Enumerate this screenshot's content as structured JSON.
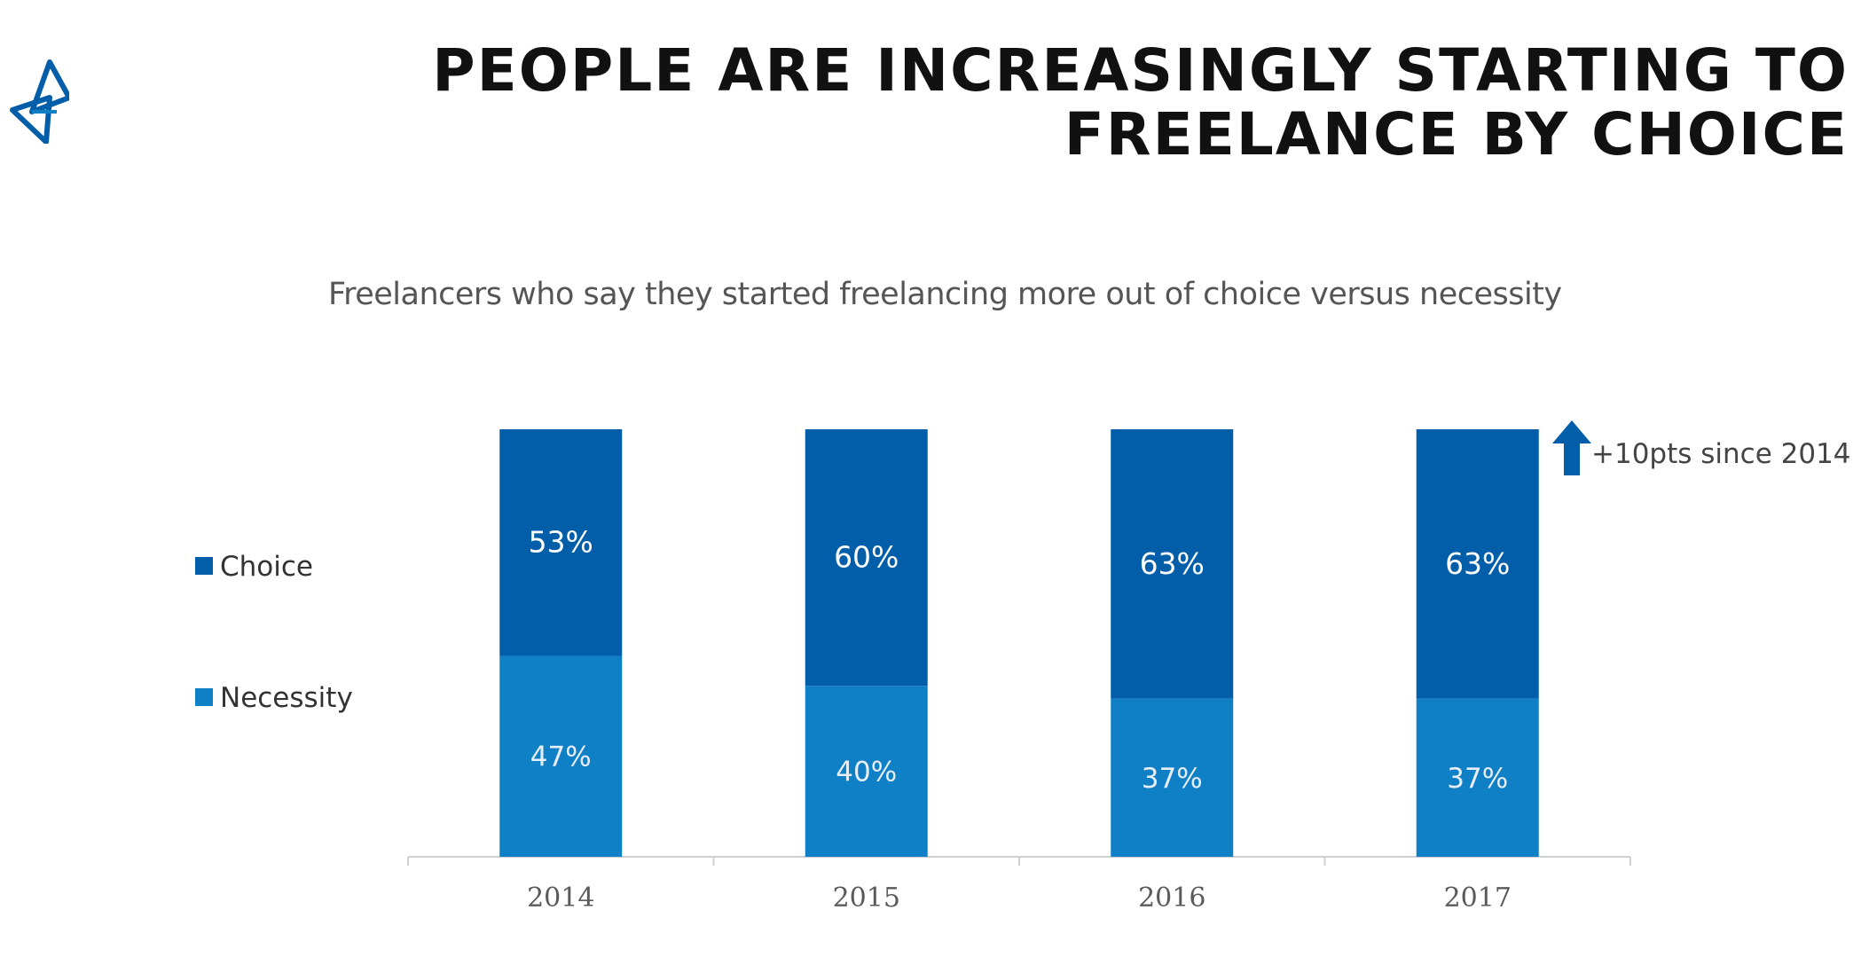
{
  "slide": {
    "title": "PEOPLE ARE INCREASINGLY STARTING TO FREELANCE BY CHOICE",
    "logo_icon": "triangle-star-logo-icon"
  },
  "colors": {
    "choice": "#035eaa",
    "necessity": "#1080c6",
    "arrow": "#035eaa",
    "axis": "#d0d0d0",
    "tick_label": "#5a5a5a",
    "bar_label": "#e8eef6",
    "title": "#111111"
  },
  "chart_data": {
    "type": "bar",
    "stacked": true,
    "percent_stacked": true,
    "title": "Freelancers who say they started freelancing more out of choice versus necessity",
    "categories": [
      "2014",
      "2015",
      "2016",
      "2017"
    ],
    "series": [
      {
        "name": "Necessity",
        "values": [
          47,
          40,
          37,
          37
        ],
        "labels": [
          "47%",
          "40%",
          "37%",
          "37%"
        ]
      },
      {
        "name": "Choice",
        "values": [
          53,
          60,
          63,
          63
        ],
        "labels": [
          "53%",
          "60%",
          "63%",
          "63%"
        ]
      }
    ],
    "ylim": [
      0,
      100
    ],
    "value_unit": "%",
    "grid": false,
    "legend": {
      "position": "left",
      "items": [
        "Choice",
        "Necessity"
      ]
    },
    "annotation": {
      "text": "+10pts since 2014",
      "icon": "up-arrow-icon",
      "position": "right of 2017 bar, top"
    }
  }
}
